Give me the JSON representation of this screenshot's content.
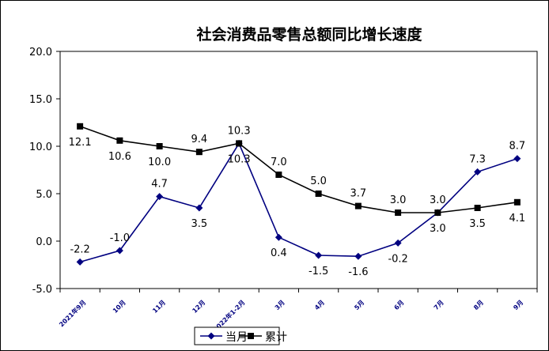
{
  "chart_data": {
    "type": "line",
    "title": "社会消费品零售总额同比增长速度",
    "categories": [
      "2021年9月",
      "10月",
      "11月",
      "12月",
      "2022年1-2月",
      "3月",
      "4月",
      "5月",
      "6月",
      "7月",
      "8月",
      "9月"
    ],
    "ylim": [
      -5,
      20
    ],
    "yticks": [
      "20.0",
      "15.0",
      "10.0",
      "5.0",
      "0.0",
      "-5.0"
    ],
    "grid": false,
    "legend": "bottom",
    "series": [
      {
        "name": "当月",
        "color": "#000080",
        "marker": "diamond",
        "values": [
          -2.2,
          -1.0,
          4.7,
          3.5,
          10.3,
          0.4,
          -1.5,
          -1.6,
          -0.2,
          3.0,
          7.3,
          8.7
        ],
        "labels": [
          "-2.2",
          "-1.0",
          "4.7",
          "3.5",
          "10.3",
          "0.4",
          "-1.5",
          "-1.6",
          "-0.2",
          "3.0",
          "7.3",
          "8.7"
        ]
      },
      {
        "name": "累计",
        "color": "#000000",
        "marker": "square",
        "values": [
          12.1,
          10.6,
          10.0,
          9.4,
          10.3,
          7.0,
          5.0,
          3.7,
          3.0,
          3.0,
          3.5,
          4.1
        ],
        "labels": [
          "12.1",
          "10.6",
          "10.0",
          "9.4",
          "10.3",
          "7.0",
          "5.0",
          "3.7",
          "3.0",
          "3.0",
          "3.5",
          "4.1"
        ]
      }
    ]
  }
}
